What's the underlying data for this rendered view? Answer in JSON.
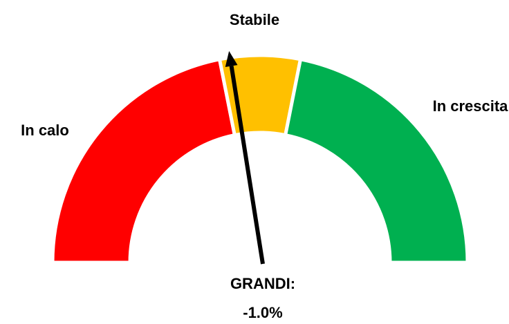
{
  "chart_data": {
    "type": "gauge",
    "range": [
      -10,
      10
    ],
    "categories": [
      "In calo",
      "Stabile",
      "In crescita"
    ],
    "values": [
      8.75,
      2.5,
      8.75
    ],
    "colors": [
      "#ff0000",
      "#ffc000",
      "#00b050"
    ],
    "needle": {
      "label": "GRANDI:",
      "value": -1.0,
      "value_label": "-1.0%"
    }
  }
}
